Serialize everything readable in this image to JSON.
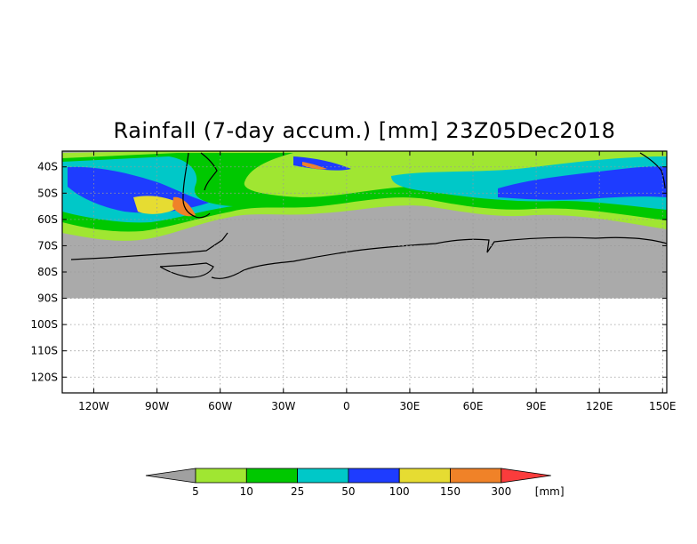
{
  "title": "Rainfall (7-day accum.) [mm] 23Z05Dec2018",
  "map": {
    "lat_range": [
      -126,
      -34
    ],
    "lon_range": [
      -135,
      152
    ],
    "data_lat_max": -90,
    "land_mask_color": "#aaaaaa",
    "grid": "dotted",
    "lat_ticks": [
      "40S",
      "50S",
      "60S",
      "70S",
      "80S",
      "90S",
      "100S",
      "110S",
      "120S"
    ],
    "lat_tick_values": [
      -40,
      -50,
      -60,
      -70,
      -80,
      -90,
      -100,
      -110,
      -120
    ],
    "lon_ticks": [
      "120W",
      "90W",
      "60W",
      "30W",
      "0",
      "30E",
      "60E",
      "90E",
      "120E",
      "150E"
    ],
    "lon_tick_values": [
      -120,
      -90,
      -60,
      -30,
      0,
      30,
      60,
      90,
      120,
      150
    ]
  },
  "colorbar": {
    "unit": "[mm]",
    "labels": [
      "5",
      "10",
      "25",
      "50",
      "100",
      "150",
      "300"
    ],
    "below_color": "#a0a0a0",
    "colors": [
      "#a0e632",
      "#00c800",
      "#00c8c8",
      "#1e3cff",
      "#e6dc32",
      "#f08228"
    ],
    "above_color": "#fa3c3c"
  }
}
